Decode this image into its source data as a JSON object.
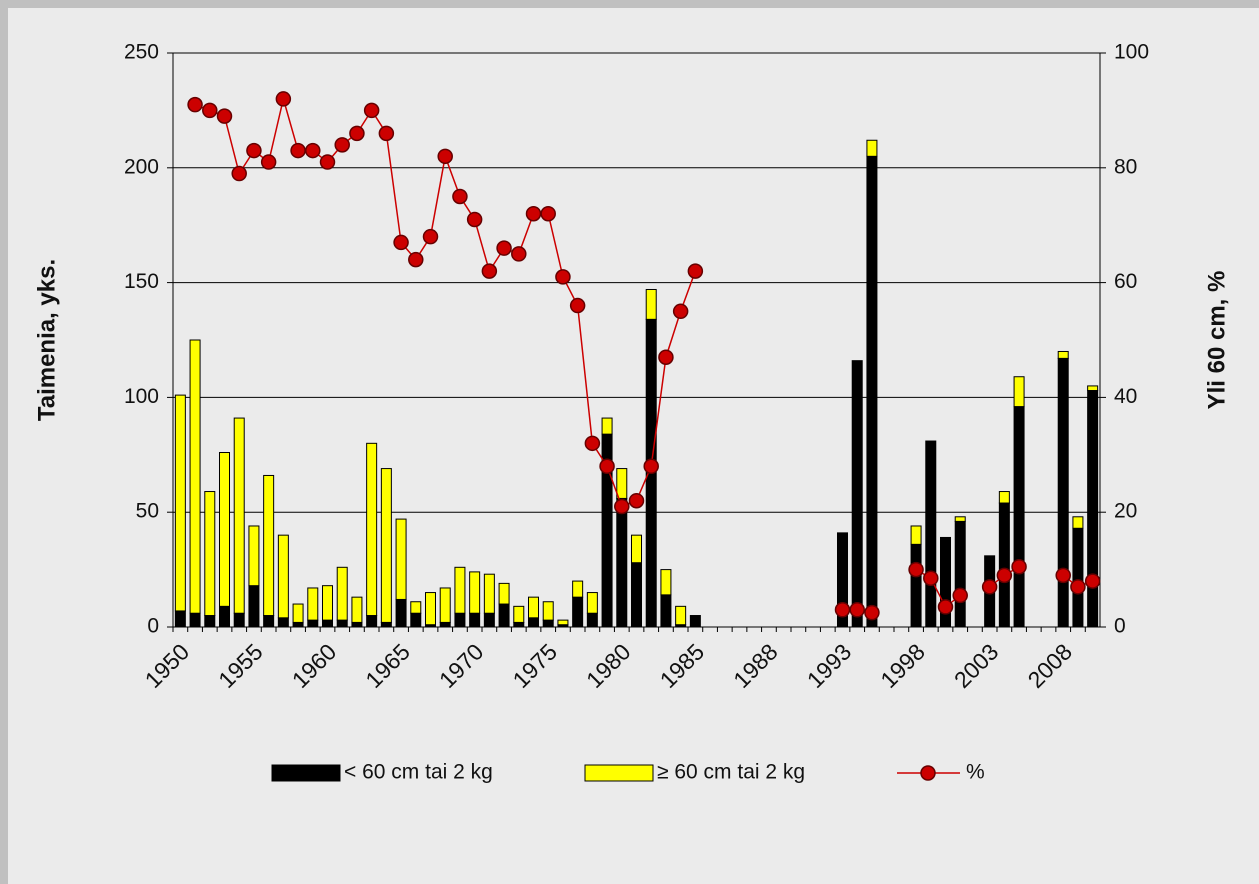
{
  "chart_data": {
    "type": "bar",
    "categories": [
      "1950",
      null,
      null,
      null,
      null,
      "1955",
      null,
      null,
      null,
      null,
      "1960",
      null,
      null,
      null,
      null,
      "1965",
      null,
      null,
      null,
      null,
      "1970",
      null,
      null,
      null,
      null,
      "1975",
      null,
      null,
      null,
      null,
      "1980",
      null,
      null,
      null,
      null,
      "1985",
      null,
      null,
      null,
      null,
      "1988",
      null,
      null,
      null,
      null,
      "1993",
      null,
      null,
      null,
      null,
      "1998",
      null,
      null,
      null,
      null,
      "2003",
      null,
      null,
      null,
      null,
      "2008",
      null,
      null
    ],
    "ylabel": "Taimenia, yks.",
    "y2label": "Yli 60 cm, %",
    "ylim": [
      0,
      250
    ],
    "yticks": [
      0,
      50,
      100,
      150,
      200,
      250
    ],
    "y2lim": [
      0,
      100
    ],
    "y2ticks": [
      0,
      20,
      40,
      60,
      80,
      100
    ],
    "grid": true,
    "stacked": true,
    "legend": "bottom",
    "series": [
      {
        "name": "< 60 cm tai 2 kg",
        "color": "#000000",
        "type": "bar",
        "values": [
          7,
          6,
          5,
          9,
          6,
          18,
          5,
          4,
          2,
          3,
          3,
          3,
          2,
          5,
          2,
          12,
          6,
          1,
          2,
          6,
          6,
          6,
          10,
          2,
          4,
          3,
          1,
          13,
          6,
          84,
          56,
          28,
          134,
          14,
          1,
          5,
          null,
          null,
          null,
          null,
          null,
          null,
          null,
          null,
          null,
          41,
          116,
          205,
          null,
          null,
          36,
          81,
          39,
          46,
          null,
          31,
          54,
          96,
          null,
          null,
          117,
          43,
          103
        ]
      },
      {
        "name": "≥ 60 cm tai 2 kg",
        "color": "#ffff00",
        "type": "bar",
        "values": [
          94,
          119,
          54,
          67,
          85,
          26,
          61,
          36,
          8,
          14,
          15,
          23,
          11,
          75,
          67,
          35,
          5,
          14,
          15,
          20,
          18,
          17,
          9,
          7,
          9,
          8,
          2,
          7,
          9,
          7,
          13,
          12,
          13,
          11,
          8,
          0,
          null,
          null,
          null,
          null,
          null,
          null,
          null,
          null,
          null,
          0,
          0,
          7,
          null,
          null,
          8,
          0,
          0,
          2,
          null,
          0,
          5,
          13,
          null,
          null,
          3,
          5,
          2
        ]
      },
      {
        "name": "%",
        "color": "#cc0000",
        "type": "line",
        "axis": "y2",
        "values": [
          null,
          91,
          90,
          89,
          79,
          83,
          81,
          92,
          83,
          83,
          81,
          84,
          86,
          90,
          86,
          67,
          64,
          68,
          82,
          75,
          71,
          62,
          66,
          65,
          72,
          72,
          61,
          56,
          32,
          28,
          21,
          22,
          28,
          47,
          55,
          62,
          null,
          null,
          null,
          null,
          null,
          null,
          null,
          null,
          null,
          3,
          3,
          2.5,
          null,
          null,
          10,
          8.5,
          3.5,
          5.5,
          null,
          7,
          9,
          10.5,
          null,
          null,
          9,
          7,
          8
        ]
      }
    ]
  }
}
